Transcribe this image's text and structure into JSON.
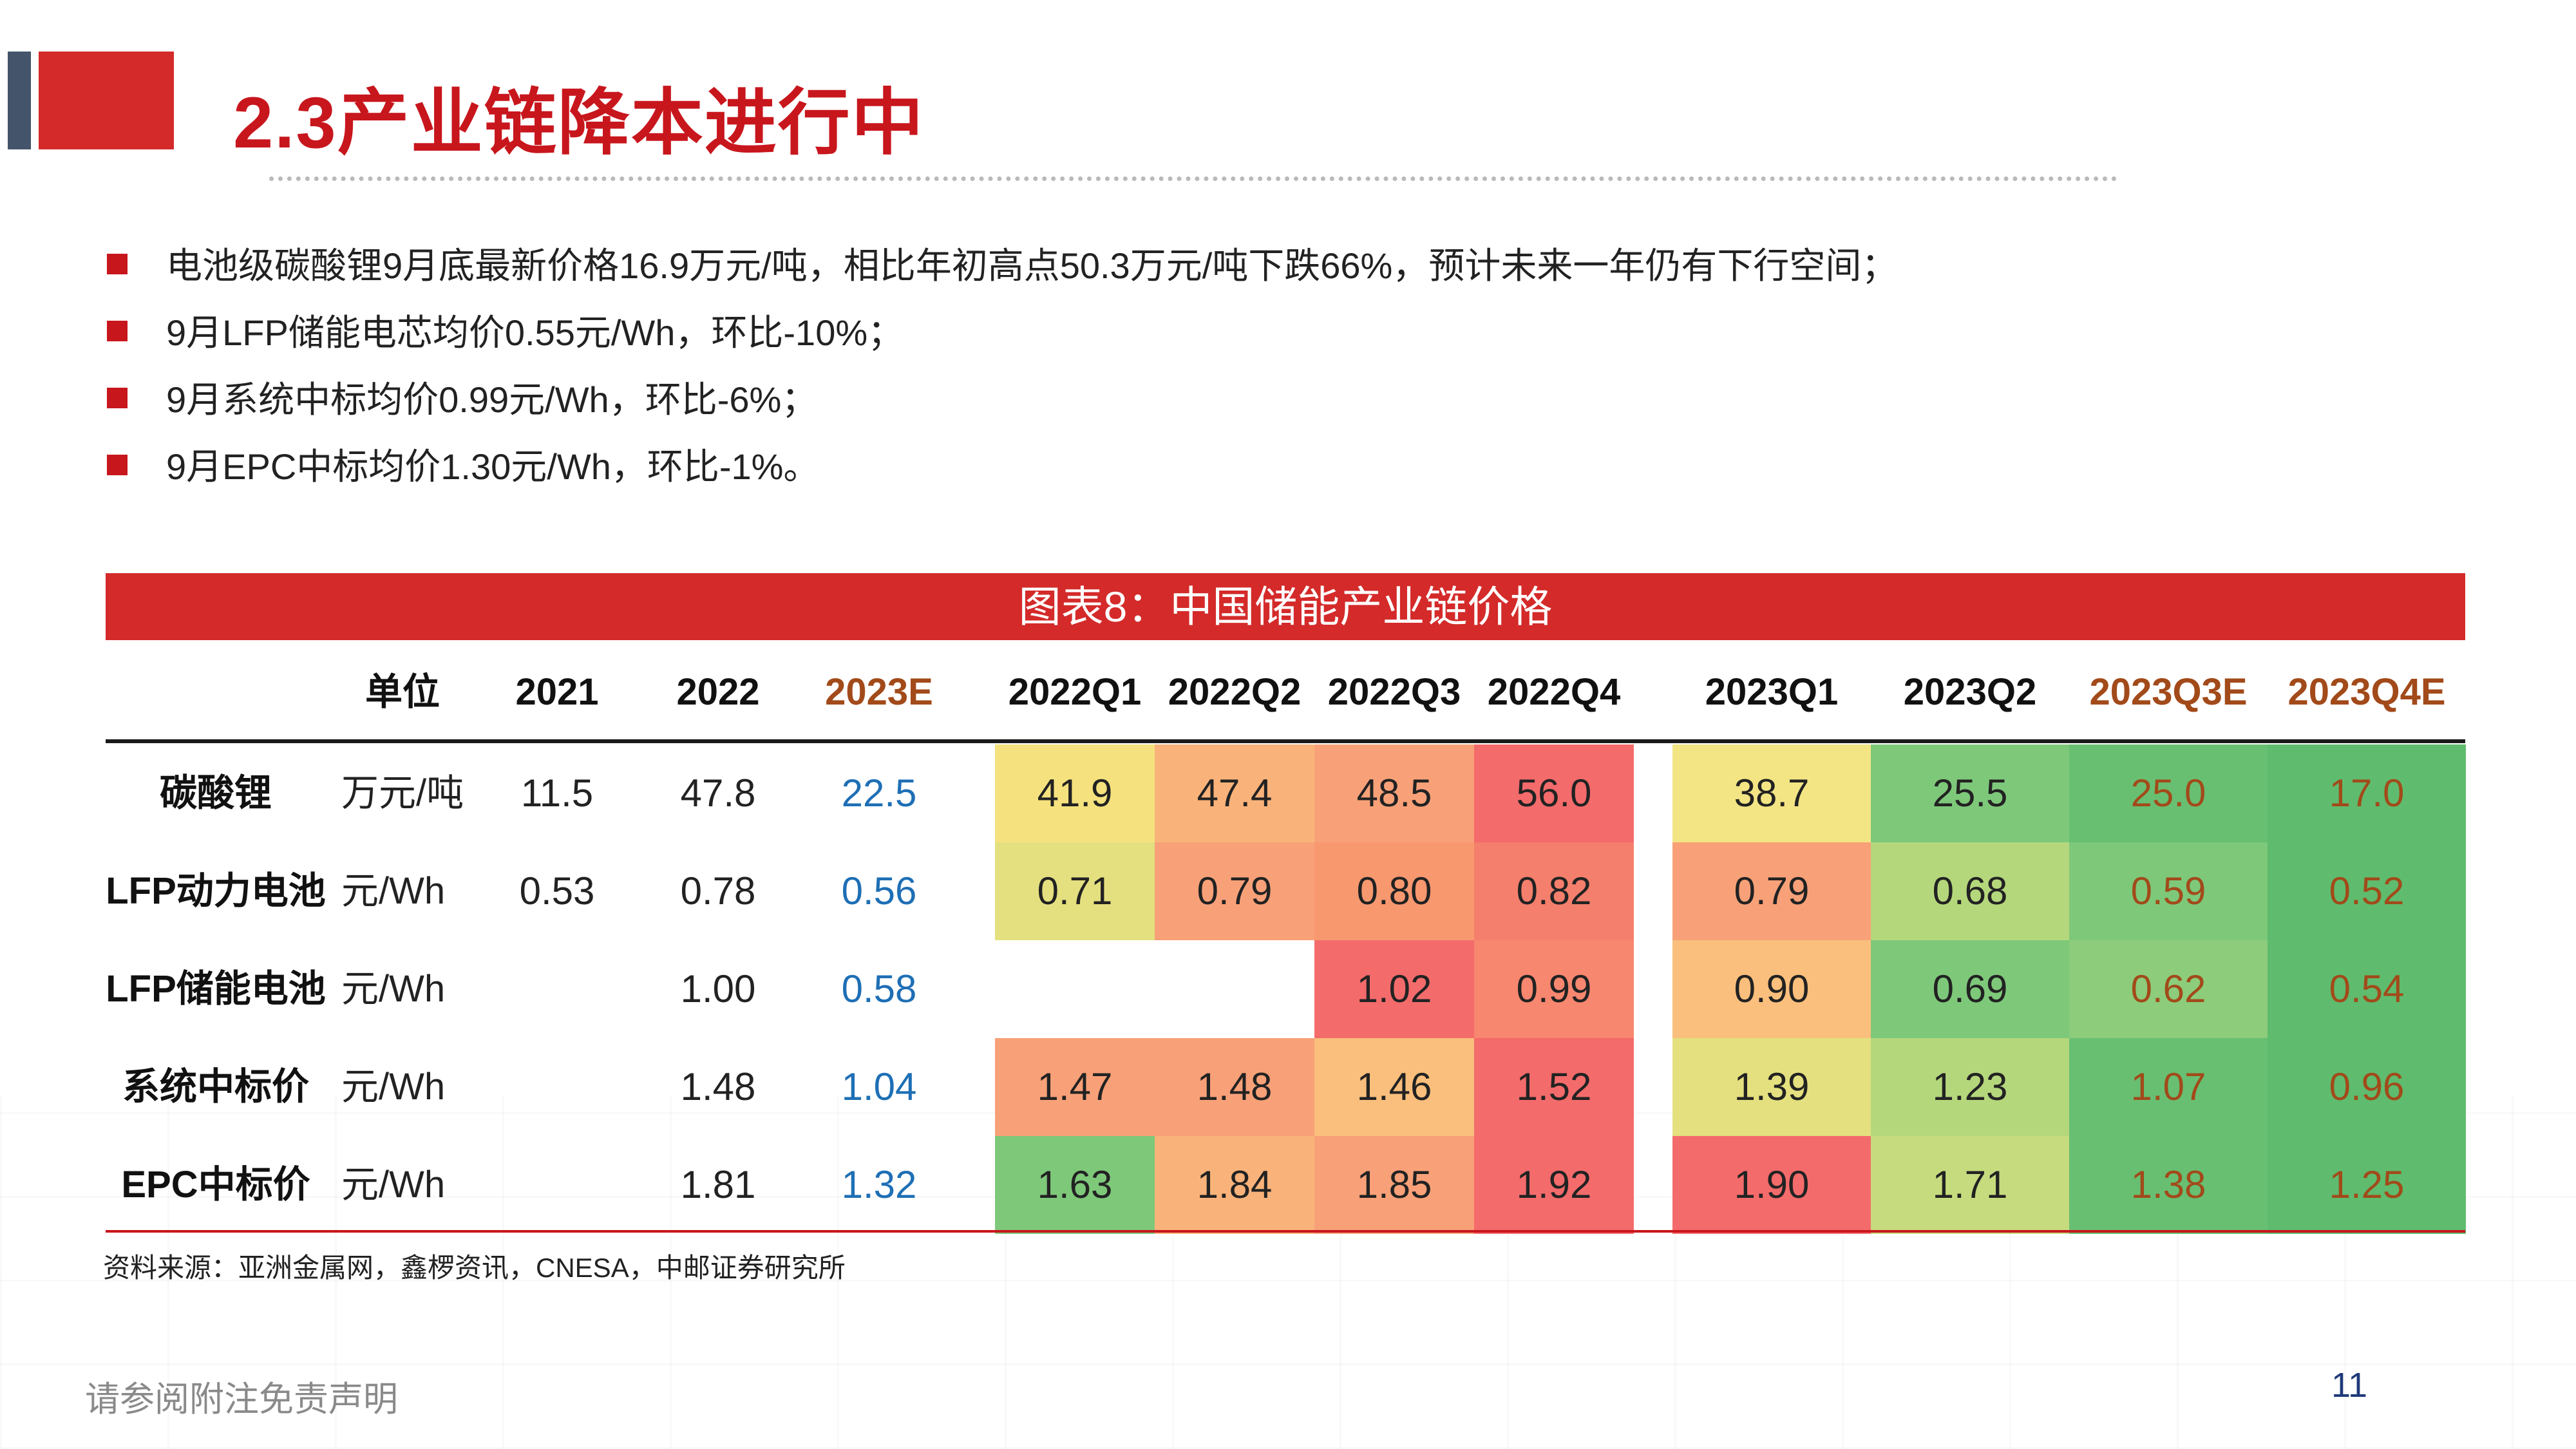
{
  "title": "2.3产业链降本进行中",
  "bullets": [
    "电池级碳酸锂9月底最新价格16.9万元/吨，相比年初高点50.3万元/吨下跌66%，预计未来一年仍有下行空间；",
    "9月LFP储能电芯均价0.55元/Wh，环比-10%；",
    "9月系统中标均价0.99元/Wh，环比-6%；",
    "9月EPC中标均价1.30元/Wh，环比-1%。"
  ],
  "table": {
    "caption": "图表8：中国储能产业链价格",
    "headers": {
      "unit": "单位",
      "y2021": "2021",
      "y2022": "2022",
      "y2023e": "2023E",
      "q1_22": "2022Q1",
      "q2_22": "2022Q2",
      "q3_22": "2022Q3",
      "q4_22": "2022Q4",
      "q1_23": "2023Q1",
      "q2_23": "2023Q2",
      "q3_23e": "2023Q3E",
      "q4_23e": "2023Q4E"
    },
    "rows": [
      {
        "label": "碳酸锂",
        "unit": "万元/吨",
        "y2021": "11.5",
        "y2022": "47.8",
        "y2023e": "22.5",
        "quarters": [
          "41.9",
          "47.4",
          "48.5",
          "56.0",
          "38.7",
          "25.5",
          "25.0",
          "17.0"
        ],
        "colors": [
          "#f5e27e",
          "#f9b37a",
          "#f8a178",
          "#f46b6b",
          "#f3e584",
          "#7ec87a",
          "#68bf72",
          "#5fbb6e"
        ]
      },
      {
        "label": "LFP动力电池",
        "unit": "元/Wh",
        "y2021": "0.53",
        "y2022": "0.78",
        "y2023e": "0.56",
        "quarters": [
          "0.71",
          "0.79",
          "0.80",
          "0.82",
          "0.79",
          "0.68",
          "0.59",
          "0.52"
        ],
        "colors": [
          "#e4e07f",
          "#f8a178",
          "#f7986f",
          "#f47f6c",
          "#f8a178",
          "#b5d77c",
          "#7ec87a",
          "#5fbb6e"
        ]
      },
      {
        "label": "LFP储能电池",
        "unit": "元/Wh",
        "y2021": "",
        "y2022": "1.00",
        "y2023e": "0.58",
        "quarters": [
          "",
          "",
          "1.02",
          "0.99",
          "0.90",
          "0.69",
          "0.62",
          "0.54"
        ],
        "colors": [
          "#ffffff",
          "#ffffff",
          "#f46b6b",
          "#f7876f",
          "#fabf7c",
          "#7ec87a",
          "#8ccc7a",
          "#5fbb6e"
        ]
      },
      {
        "label": "系统中标价",
        "unit": "元/Wh",
        "y2021": "",
        "y2022": "1.48",
        "y2023e": "1.04",
        "quarters": [
          "1.47",
          "1.48",
          "1.46",
          "1.52",
          "1.39",
          "1.23",
          "1.07",
          "0.96"
        ],
        "colors": [
          "#f8a178",
          "#f8a178",
          "#fabf7c",
          "#f46b6b",
          "#e4e07f",
          "#b5d77c",
          "#68bf72",
          "#5fbb6e"
        ]
      },
      {
        "label": "EPC中标价",
        "unit": "元/Wh",
        "y2021": "",
        "y2022": "1.81",
        "y2023e": "1.32",
        "quarters": [
          "1.63",
          "1.84",
          "1.85",
          "1.92",
          "1.90",
          "1.71",
          "1.38",
          "1.25"
        ],
        "colors": [
          "#7ec87a",
          "#f9b37a",
          "#f8a178",
          "#f46b6b",
          "#f46b6b",
          "#c6db7e",
          "#68bf72",
          "#5fbb6e"
        ]
      }
    ]
  },
  "source": "资料来源：亚洲金属网，鑫椤资讯，CNESA，中邮证券研究所",
  "footer": {
    "disclaimer": "请参阅附注免责声明",
    "page_number": "11"
  },
  "colors": {
    "brand_red": "#c8161d",
    "banner_red": "#d42a2a",
    "accent_gray": "#44546a",
    "forecast_blue": "#1e6fb5",
    "forecast_brown": "#a24a1a"
  }
}
